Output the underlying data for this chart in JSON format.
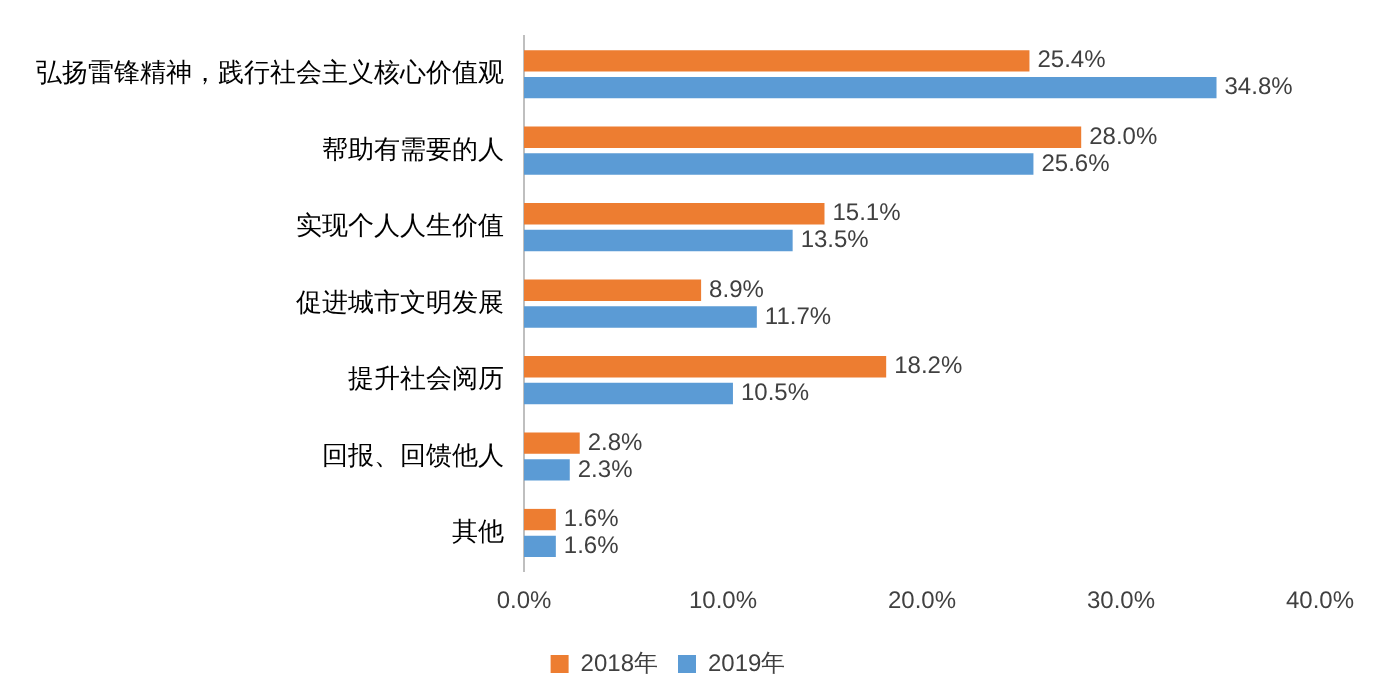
{
  "chart_data": {
    "type": "bar",
    "orientation": "horizontal",
    "categories": [
      "弘扬雷锋精神，践行社会主义核心价值观",
      "帮助有需要的人",
      "实现个人人生价值",
      "促进城市文明发展",
      "提升社会阅历",
      "回报、回馈他人",
      "其他"
    ],
    "series": [
      {
        "name": "2018年",
        "color": "#ed7d31",
        "values": [
          25.4,
          28.0,
          15.1,
          8.9,
          18.2,
          2.8,
          1.6
        ],
        "value_labels": [
          "25.4%",
          "28.0%",
          "15.1%",
          "8.9%",
          "18.2%",
          "2.8%",
          "1.6%"
        ]
      },
      {
        "name": "2019年",
        "color": "#5b9bd5",
        "values": [
          34.8,
          25.6,
          13.5,
          11.7,
          10.5,
          2.3,
          1.6
        ],
        "value_labels": [
          "34.8%",
          "25.6%",
          "13.5%",
          "11.7%",
          "10.5%",
          "2.3%",
          "1.6%"
        ]
      }
    ],
    "xlim": [
      0,
      40
    ],
    "xticks": [
      {
        "value": 0,
        "label": "0.0%"
      },
      {
        "value": 10,
        "label": "10.0%"
      },
      {
        "value": 20,
        "label": "20.0%"
      },
      {
        "value": 30,
        "label": "30.0%"
      },
      {
        "value": 40,
        "label": "40.0%"
      }
    ],
    "grid": false,
    "legend": "bottom"
  }
}
